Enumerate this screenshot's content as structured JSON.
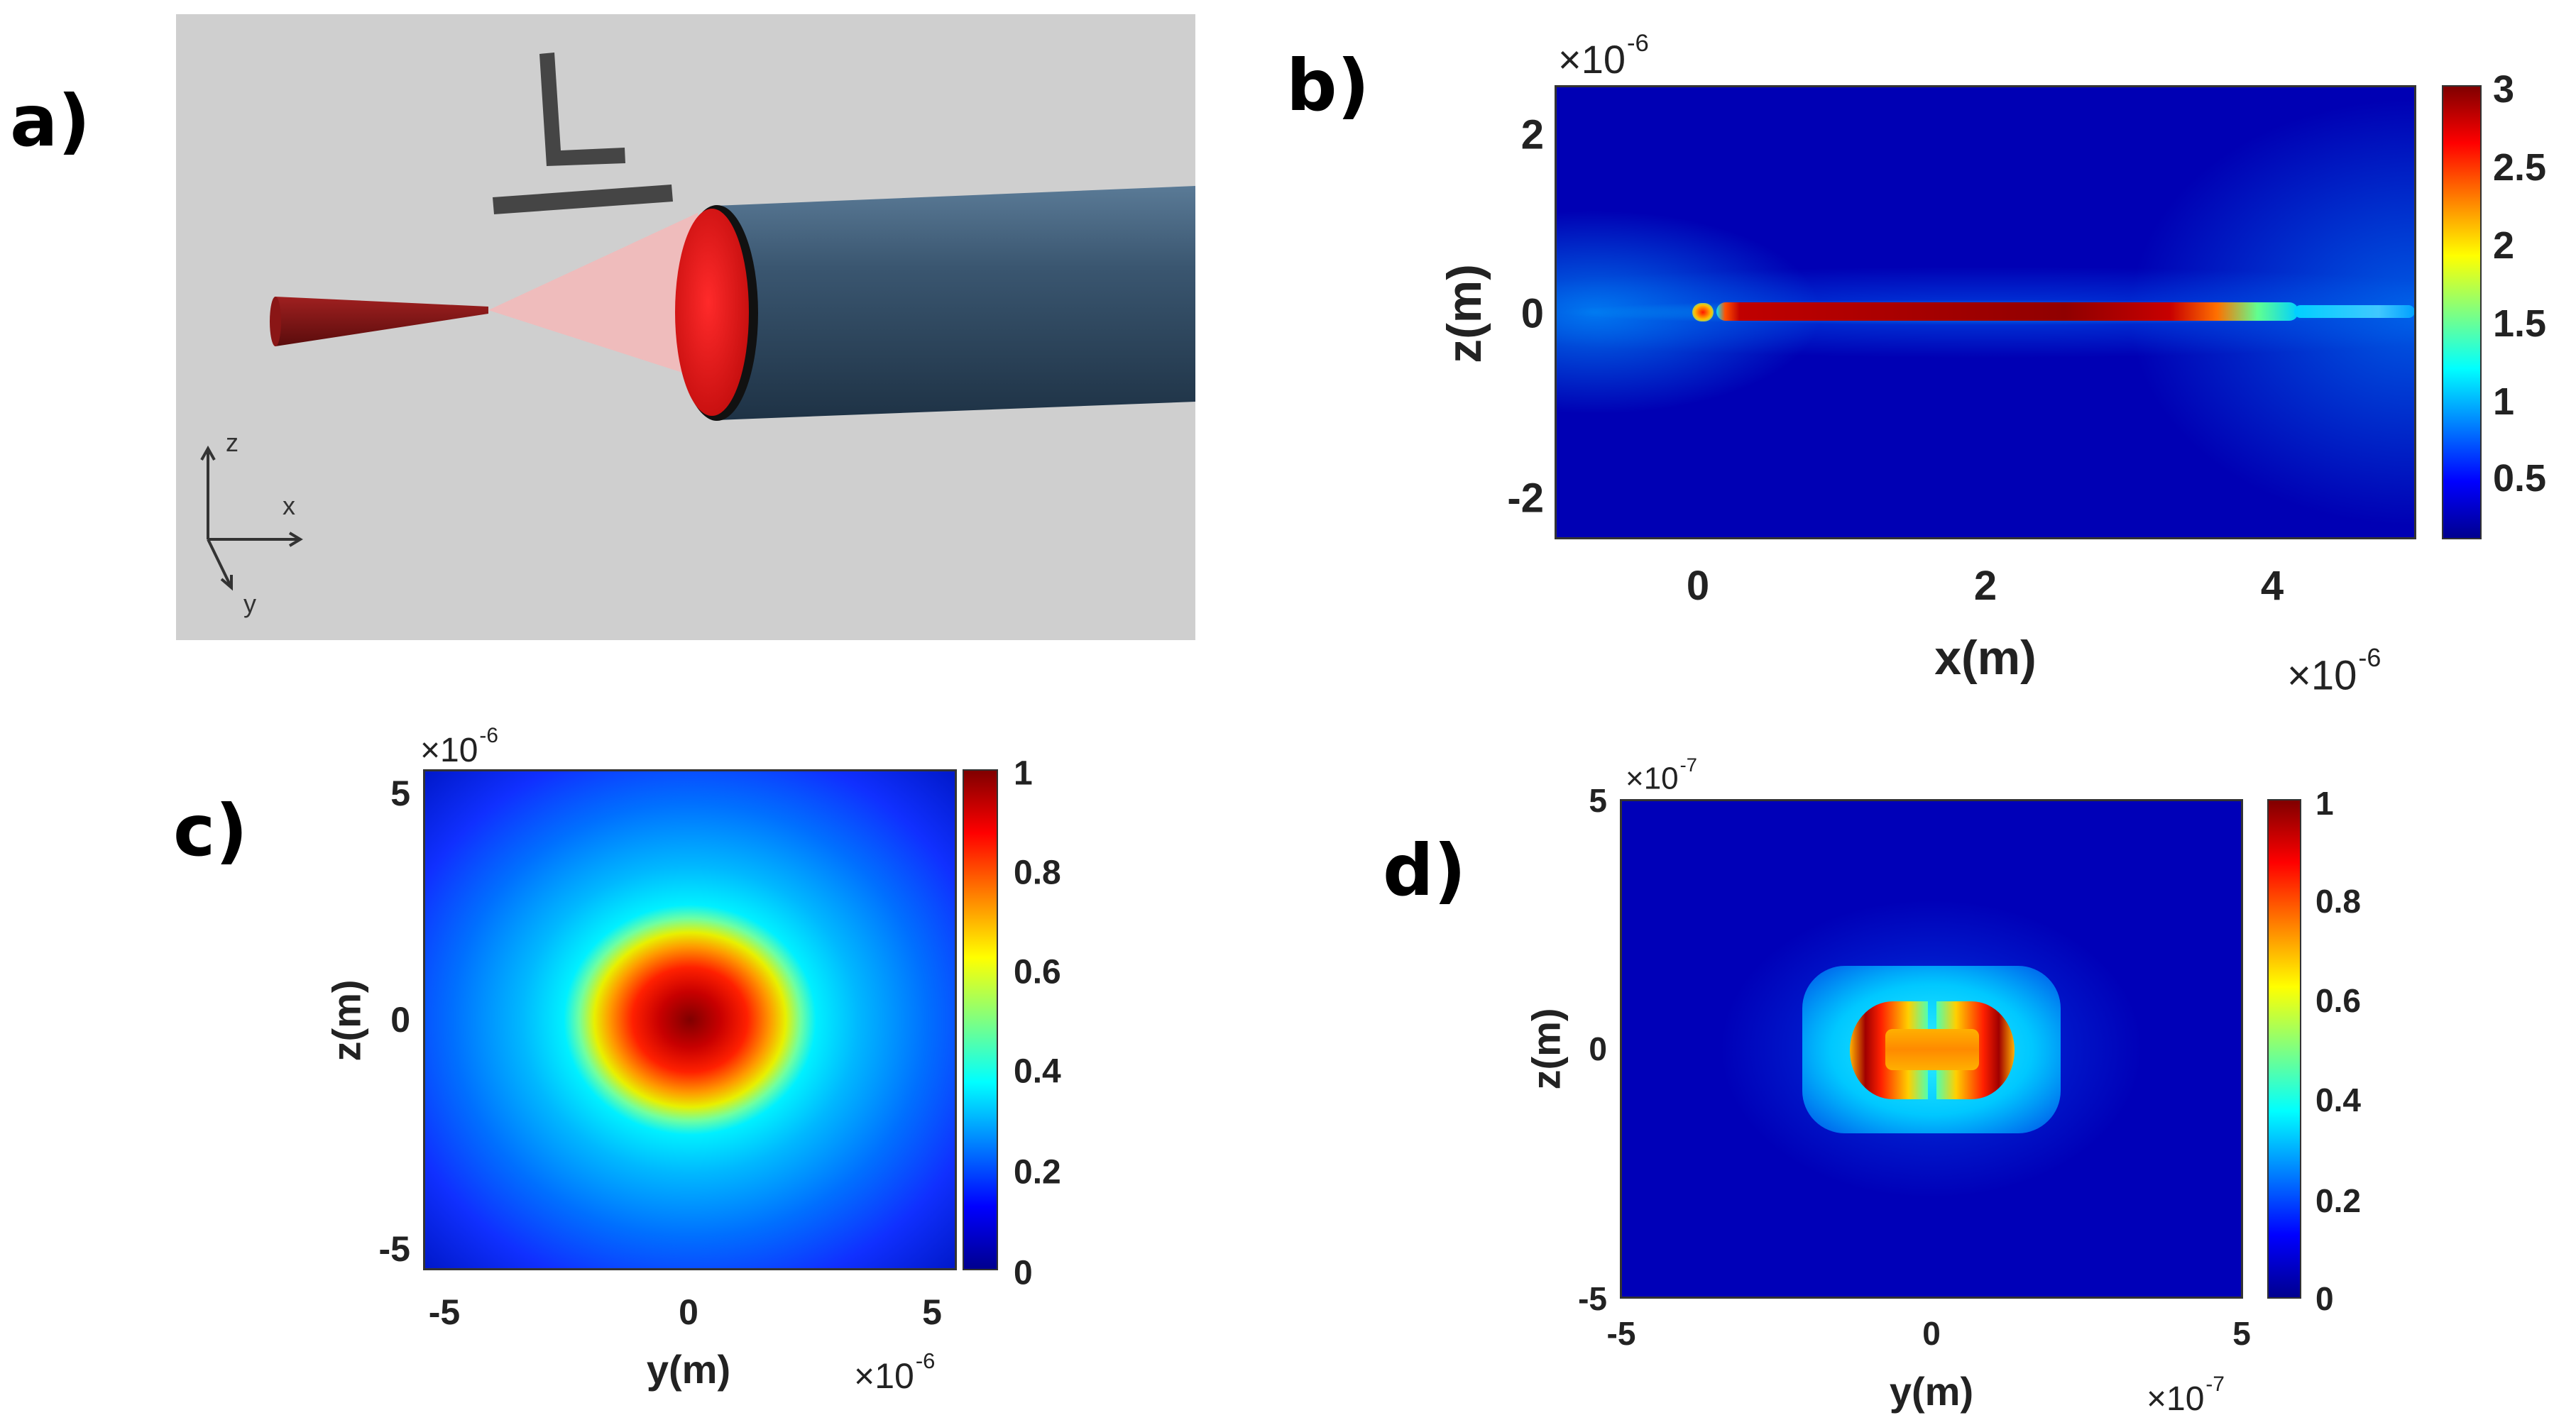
{
  "panels": {
    "a": {
      "label": "a)",
      "axis_labels": {
        "z": "z",
        "x": "x",
        "y": "y"
      },
      "colors": {
        "background": "#cfcfcf",
        "fiber": "#2f4a63",
        "fiber_face": "#d01515",
        "tip": "#7a1212",
        "beam": "#f4b8b8",
        "label_L": "#454545"
      },
      "logo_text": "L"
    },
    "b": {
      "label": "b)",
      "xlabel": "x(m)",
      "ylabel": "z(m)",
      "x_multiplier": "×10",
      "x_exponent": "-6",
      "y_multiplier": "×10",
      "y_exponent": "-6",
      "xticks": [
        "0",
        "2",
        "4"
      ],
      "yticks": [
        "2",
        "0",
        "-2"
      ],
      "colorbar_ticks": [
        "3",
        "2.5",
        "2",
        "1.5",
        "1",
        "0.5"
      ]
    },
    "c": {
      "label": "c)",
      "xlabel": "y(m)",
      "ylabel": "z(m)",
      "x_multiplier": "×10",
      "x_exponent": "-6",
      "y_multiplier": "×10",
      "y_exponent": "-6",
      "xticks": [
        "-5",
        "0",
        "5"
      ],
      "yticks": [
        "5",
        "0",
        "-5"
      ],
      "colorbar_ticks": [
        "1",
        "0.8",
        "0.6",
        "0.4",
        "0.2",
        "0"
      ]
    },
    "d": {
      "label": "d)",
      "xlabel": "y(m)",
      "ylabel": "z(m)",
      "x_multiplier": "×10",
      "x_exponent": "-7",
      "y_multiplier": "×10",
      "y_exponent": "-7",
      "xticks": [
        "-5",
        "0",
        "5"
      ],
      "yticks": [
        "5",
        "0",
        "-5"
      ],
      "colorbar_ticks": [
        "1",
        "0.8",
        "0.6",
        "0.4",
        "0.2",
        "0"
      ]
    }
  },
  "chart_data": [
    {
      "type": "heatmap",
      "panel": "b",
      "xlabel": "x(m)",
      "ylabel": "z(m)",
      "xlim": [
        -1e-06,
        5e-06
      ],
      "ylim": [
        -2.5e-06,
        2.5e-06
      ],
      "colorbar_range": [
        0.15,
        3
      ],
      "colormap": "jet",
      "feature": {
        "shape": "horizontal strip",
        "x_range": [
          0,
          4e-06
        ],
        "z": 0,
        "peak": 3
      }
    },
    {
      "type": "heatmap",
      "panel": "c",
      "xlabel": "y(m)",
      "ylabel": "z(m)",
      "xlim": [
        -5.5e-06,
        5.5e-06
      ],
      "ylim": [
        -5.5e-06,
        5.5e-06
      ],
      "colorbar_range": [
        0,
        1
      ],
      "colormap": "jet",
      "feature": {
        "shape": "gaussian spot",
        "center": [
          0,
          0
        ],
        "peak": 1
      }
    },
    {
      "type": "heatmap",
      "panel": "d",
      "xlabel": "y(m)",
      "ylabel": "z(m)",
      "xlim": [
        -5e-07,
        5e-07
      ],
      "ylim": [
        -5e-07,
        5e-07
      ],
      "colorbar_range": [
        0,
        1
      ],
      "colormap": "jet",
      "feature": {
        "shape": "core mode with two bright lobes",
        "center": [
          0,
          0
        ],
        "peak": 1
      }
    }
  ]
}
